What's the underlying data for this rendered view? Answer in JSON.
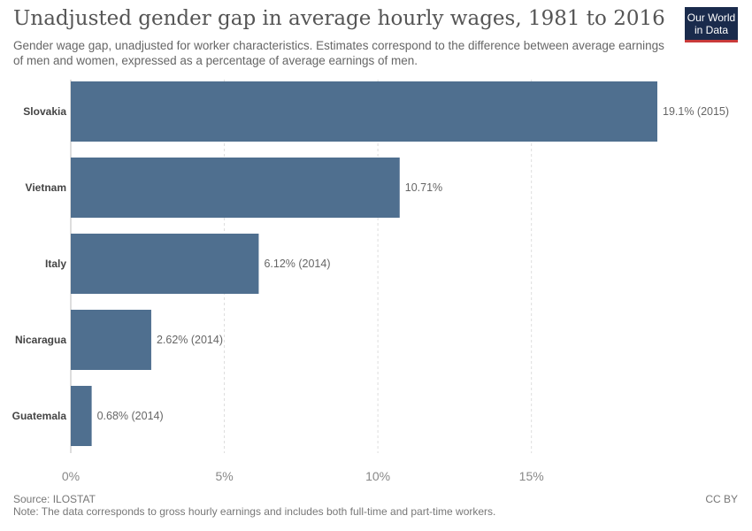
{
  "header": {
    "title": "Unadjusted gender gap in average hourly wages, 1981 to 2016",
    "subtitle": "Gender wage gap, unadjusted for worker characteristics. Estimates correspond to the difference between average earnings of men and women, expressed as a percentage of average earnings of men."
  },
  "logo": {
    "line1": "Our World",
    "line2": "in Data"
  },
  "footer": {
    "source": "Source: ILOSTAT",
    "note": "Note: The data corresponds to gross hourly earnings and includes both full-time and part-time workers.",
    "license": "CC BY"
  },
  "chart_data": {
    "type": "bar",
    "orientation": "horizontal",
    "categories": [
      "Slovakia",
      "Vietnam",
      "Italy",
      "Nicaragua",
      "Guatemala"
    ],
    "values": [
      19.1,
      10.71,
      6.12,
      2.62,
      0.68
    ],
    "value_labels": [
      "19.1% (2015)",
      "10.71%",
      "6.12% (2014)",
      "2.62% (2014)",
      "0.68% (2014)"
    ],
    "xlim": [
      0,
      19.1
    ],
    "xticks": [
      0,
      5,
      10,
      15
    ],
    "xtick_labels": [
      "0%",
      "5%",
      "10%",
      "15%"
    ],
    "bar_color": "#4f6f8f",
    "grid": true
  }
}
